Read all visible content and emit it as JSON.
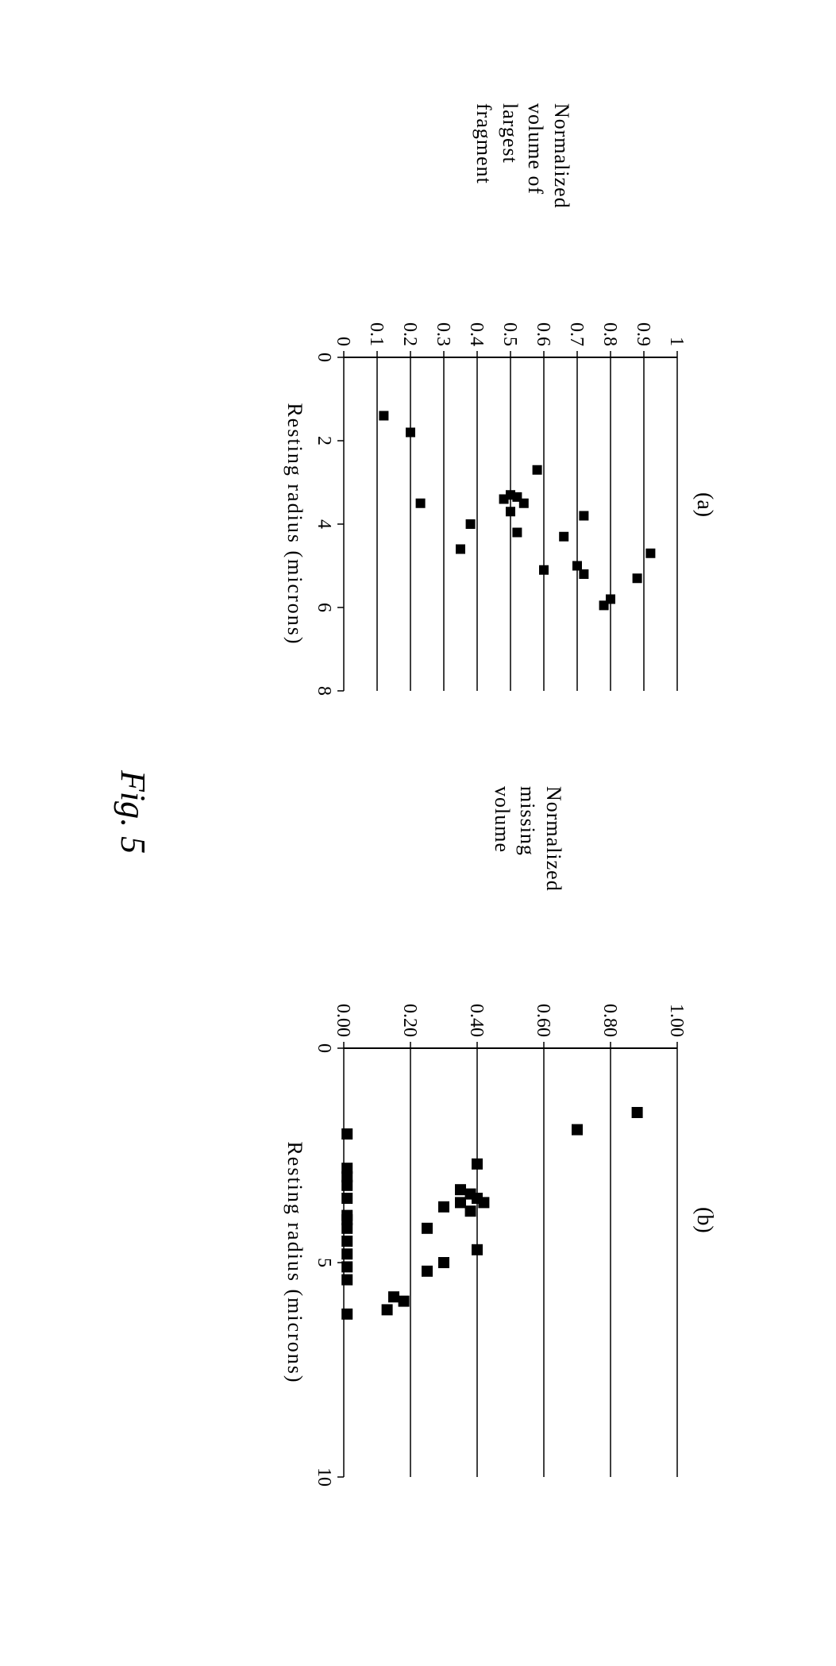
{
  "figure_caption": "Fig. 5",
  "figure_caption_fontsize": 44,
  "background_color": "#ffffff",
  "text_color": "#000000",
  "panel_a": {
    "label": "(a)",
    "label_fontsize": 28,
    "type": "scatter",
    "ylabel_lines": [
      "Normalized",
      "volume of",
      "largest",
      "fragment"
    ],
    "ylabel_fontsize": 26,
    "xlabel": "Resting radius (microns)",
    "xlabel_fontsize": 26,
    "xlim": [
      0,
      8
    ],
    "ylim": [
      0,
      1
    ],
    "xticks": [
      0,
      2,
      4,
      6,
      8
    ],
    "yticks": [
      0,
      0.1,
      0.2,
      0.3,
      0.4,
      0.5,
      0.6,
      0.7,
      0.8,
      0.9,
      1
    ],
    "xtick_labels": [
      "0",
      "2",
      "4",
      "6",
      "8"
    ],
    "ytick_labels": [
      "0",
      "0.1",
      "0.2",
      "0.3",
      "0.4",
      "0.5",
      "0.6",
      "0.7",
      "0.8",
      "0.9",
      "1"
    ],
    "tick_fontsize": 24,
    "grid_color": "#000000",
    "axis_color": "#000000",
    "marker_color": "#000000",
    "marker_size": 12,
    "points": [
      [
        1.4,
        0.12
      ],
      [
        1.8,
        0.2
      ],
      [
        2.7,
        0.58
      ],
      [
        3.3,
        0.5
      ],
      [
        3.35,
        0.52
      ],
      [
        3.4,
        0.48
      ],
      [
        3.5,
        0.54
      ],
      [
        3.5,
        0.23
      ],
      [
        3.7,
        0.5
      ],
      [
        3.8,
        0.72
      ],
      [
        4.0,
        0.38
      ],
      [
        4.2,
        0.52
      ],
      [
        4.3,
        0.66
      ],
      [
        4.6,
        0.35
      ],
      [
        4.7,
        0.92
      ],
      [
        5.0,
        0.7
      ],
      [
        5.1,
        0.6
      ],
      [
        5.2,
        0.72
      ],
      [
        5.3,
        0.88
      ],
      [
        5.8,
        0.8
      ],
      [
        5.95,
        0.78
      ]
    ]
  },
  "panel_b": {
    "label": "(b)",
    "label_fontsize": 28,
    "type": "scatter",
    "ylabel_lines": [
      "Normalized",
      "missing",
      "volume"
    ],
    "ylabel_fontsize": 26,
    "xlabel": "Resting radius (microns)",
    "xlabel_fontsize": 26,
    "xlim": [
      0,
      10
    ],
    "ylim": [
      0.0,
      1.0
    ],
    "xticks": [
      0,
      5,
      10
    ],
    "yticks": [
      0.0,
      0.2,
      0.4,
      0.6,
      0.8,
      1.0
    ],
    "xtick_labels": [
      "0",
      "5",
      "10"
    ],
    "ytick_labels": [
      "0.00",
      "0.20",
      "0.40",
      "0.60",
      "0.80",
      "1.00"
    ],
    "tick_fontsize": 24,
    "grid_color": "#000000",
    "axis_color": "#000000",
    "marker_color": "#000000",
    "marker_size": 14,
    "points": [
      [
        1.5,
        0.88
      ],
      [
        1.9,
        0.7
      ],
      [
        2.0,
        0.01
      ],
      [
        2.7,
        0.4
      ],
      [
        2.8,
        0.01
      ],
      [
        3.0,
        0.01
      ],
      [
        3.2,
        0.01
      ],
      [
        3.3,
        0.35
      ],
      [
        3.4,
        0.38
      ],
      [
        3.5,
        0.4
      ],
      [
        3.5,
        0.01
      ],
      [
        3.6,
        0.42
      ],
      [
        3.6,
        0.35
      ],
      [
        3.7,
        0.3
      ],
      [
        3.8,
        0.38
      ],
      [
        3.9,
        0.01
      ],
      [
        4.0,
        0.01
      ],
      [
        4.2,
        0.01
      ],
      [
        4.2,
        0.25
      ],
      [
        4.5,
        0.01
      ],
      [
        4.7,
        0.4
      ],
      [
        4.8,
        0.01
      ],
      [
        5.0,
        0.3
      ],
      [
        5.1,
        0.01
      ],
      [
        5.2,
        0.25
      ],
      [
        5.4,
        0.01
      ],
      [
        5.8,
        0.15
      ],
      [
        5.9,
        0.18
      ],
      [
        6.1,
        0.13
      ],
      [
        6.2,
        0.01
      ]
    ]
  }
}
